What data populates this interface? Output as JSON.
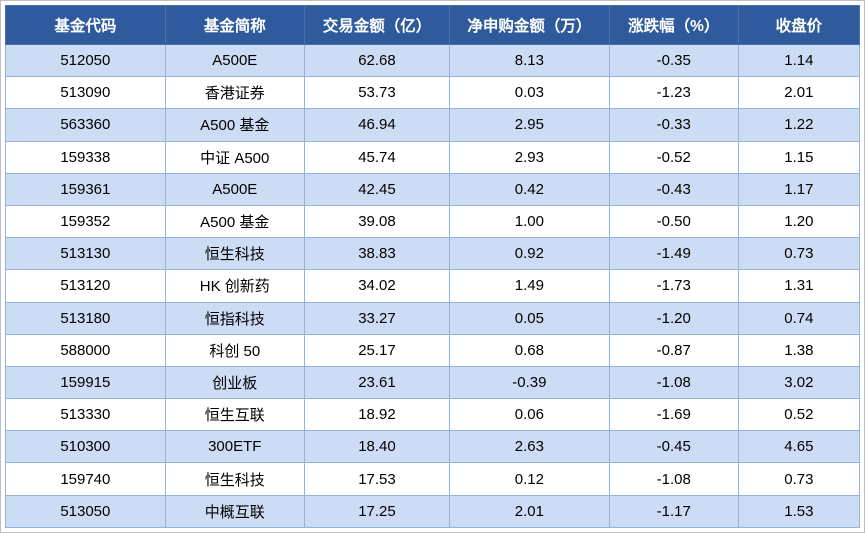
{
  "chart_data": {
    "type": "table",
    "title": "",
    "columns": [
      "基金代码",
      "基金简称",
      "交易金额（亿）",
      "净申购金额（万）",
      "涨跌幅（%）",
      "收盘价"
    ],
    "rows": [
      [
        "512050",
        "A500E",
        "62.68",
        "8.13",
        "-0.35",
        "1.14"
      ],
      [
        "513090",
        "香港证券",
        "53.73",
        "0.03",
        "-1.23",
        "2.01"
      ],
      [
        "563360",
        "A500 基金",
        "46.94",
        "2.95",
        "-0.33",
        "1.22"
      ],
      [
        "159338",
        "中证 A500",
        "45.74",
        "2.93",
        "-0.52",
        "1.15"
      ],
      [
        "159361",
        "A500E",
        "42.45",
        "0.42",
        "-0.43",
        "1.17"
      ],
      [
        "159352",
        "A500 基金",
        "39.08",
        "1.00",
        "-0.50",
        "1.20"
      ],
      [
        "513130",
        "恒生科技",
        "38.83",
        "0.92",
        "-1.49",
        "0.73"
      ],
      [
        "513120",
        "HK 创新药",
        "34.02",
        "1.49",
        "-1.73",
        "1.31"
      ],
      [
        "513180",
        "恒指科技",
        "33.27",
        "0.05",
        "-1.20",
        "0.74"
      ],
      [
        "588000",
        "科创 50",
        "25.17",
        "0.68",
        "-0.87",
        "1.38"
      ],
      [
        "159915",
        "创业板",
        "23.61",
        "-0.39",
        "-1.08",
        "3.02"
      ],
      [
        "513330",
        "恒生互联",
        "18.92",
        "0.06",
        "-1.69",
        "0.52"
      ],
      [
        "510300",
        "300ETF",
        "18.40",
        "2.63",
        "-0.45",
        "4.65"
      ],
      [
        "159740",
        "恒生科技",
        "17.53",
        "0.12",
        "-1.08",
        "0.73"
      ],
      [
        "513050",
        "中概互联",
        "17.25",
        "2.01",
        "-1.17",
        "1.53"
      ]
    ]
  },
  "colors": {
    "header_bg": "#2F5B9E",
    "header_text": "#FFFFFF",
    "header_border": "#4A6FAE",
    "row_alt_bg": "#CCDCF4",
    "row_bg": "#FFFFFF",
    "grid_border": "#95B3D7",
    "body_text": "#000000"
  }
}
